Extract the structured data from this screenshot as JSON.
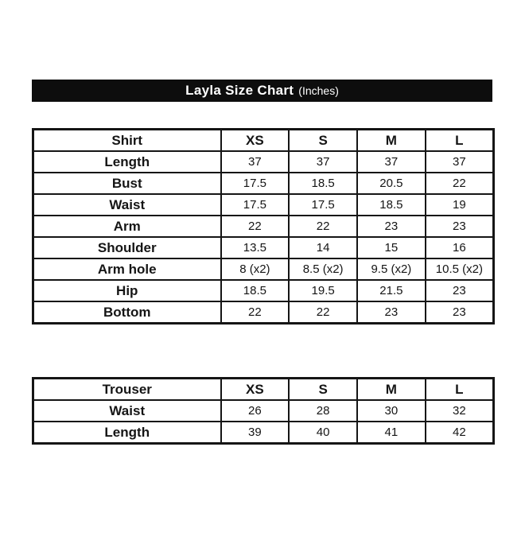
{
  "title_bar": {
    "title": "Layla Size Chart",
    "subtitle": "(Inches)"
  },
  "colors": {
    "bar_background": "#0d0d0d",
    "bar_text": "#ffffff",
    "table_border": "#151515",
    "text": "#151515",
    "page_background": "#ffffff"
  },
  "chart_data": [
    {
      "type": "table",
      "title": "Layla Size Chart (Inches) — Shirt",
      "columns": [
        "Shirt",
        "XS",
        "S",
        "M",
        "L"
      ],
      "rows": [
        [
          "Length",
          "37",
          "37",
          "37",
          "37"
        ],
        [
          "Bust",
          "17.5",
          "18.5",
          "20.5",
          "22"
        ],
        [
          "Waist",
          "17.5",
          "17.5",
          "18.5",
          "19"
        ],
        [
          "Arm",
          "22",
          "22",
          "23",
          "23"
        ],
        [
          "Shoulder",
          "13.5",
          "14",
          "15",
          "16"
        ],
        [
          "Arm hole",
          "8 (x2)",
          "8.5 (x2)",
          "9.5 (x2)",
          "10.5 (x2)"
        ],
        [
          "Hip",
          "18.5",
          "19.5",
          "21.5",
          "23"
        ],
        [
          "Bottom",
          "22",
          "22",
          "23",
          "23"
        ]
      ]
    },
    {
      "type": "table",
      "title": "Layla Size Chart (Inches) — Trouser",
      "columns": [
        "Trouser",
        "XS",
        "S",
        "M",
        "L"
      ],
      "rows": [
        [
          "Waist",
          "26",
          "28",
          "30",
          "32"
        ],
        [
          "Length",
          "39",
          "40",
          "41",
          "42"
        ]
      ]
    }
  ]
}
